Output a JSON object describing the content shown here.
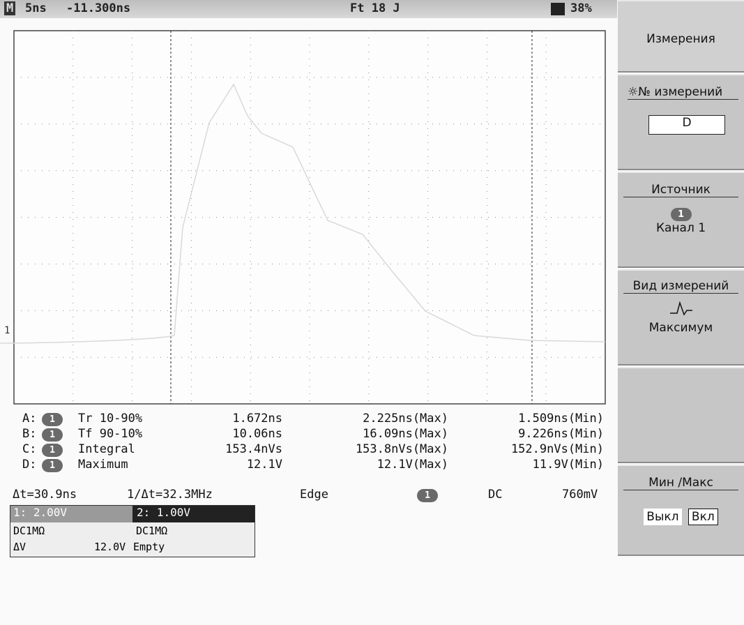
{
  "header": {
    "icon": "M",
    "timebase": "5ns",
    "offset": "-11.300ns",
    "trigger": "Ft 18 J",
    "battery": "38%"
  },
  "menu": {
    "title": "Измерения",
    "number_label": "№ измерений",
    "number_value": "D",
    "source_label": "Источник",
    "source_badge": "1",
    "source_value": "Канал 1",
    "type_label": "Вид измерений",
    "type_value": "Максимум",
    "minmax_label": "Мин /Макс",
    "off": "Выкл",
    "on": "Вкл"
  },
  "measurements": [
    {
      "slot": "A:",
      "badge": "1",
      "name": "Tr 10-90%",
      "current": "1.672ns",
      "max": "2.225ns(Max)",
      "min": "1.509ns(Min)"
    },
    {
      "slot": "B:",
      "badge": "1",
      "name": "Tf 90-10%",
      "current": "10.06ns",
      "max": "16.09ns(Max)",
      "min": "9.226ns(Min)"
    },
    {
      "slot": "C:",
      "badge": "1",
      "name": "Integral",
      "current": "153.4nVs",
      "max": "153.8nVs(Max)",
      "min": "152.9nVs(Min)"
    },
    {
      "slot": "D:",
      "badge": "1",
      "name": "Maximum",
      "current": "12.1V",
      "max": "12.1V(Max)",
      "min": "11.9V(Min)"
    }
  ],
  "status": {
    "dt": "Δt=30.9ns",
    "inv_dt": "1/Δt=32.3MHz",
    "trigger_type": "Edge",
    "trigger_source": "1",
    "coupling": "DC",
    "level": "760mV"
  },
  "channels": {
    "ch1_scale": "1: 2.00V",
    "ch2_scale": "2: 1.00V",
    "ch1_coupling": "DC1MΩ",
    "ch2_coupling": "DC1MΩ",
    "dv_label": "ΔV",
    "dv_value": "12.0V",
    "ch2_state": "Empty"
  }
}
